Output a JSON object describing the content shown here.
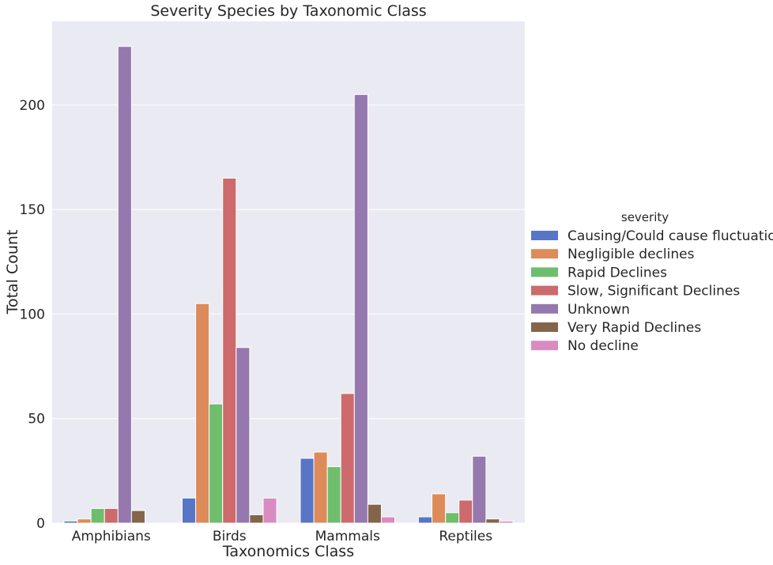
{
  "chart_data": {
    "type": "bar",
    "title": "Severity Species by Taxonomic Class",
    "xlabel": "Taxonomics Class",
    "ylabel": "Total Count",
    "categories": [
      "Amphibians",
      "Birds",
      "Mammals",
      "Reptiles"
    ],
    "ylim": [
      0,
      240
    ],
    "yticks": [
      0,
      50,
      100,
      150,
      200
    ],
    "grid": true,
    "legend_title": "severity",
    "legend_position": "right",
    "series": [
      {
        "name": "Causing/Could cause fluctuations",
        "color": "#5875c6",
        "values": [
          1,
          12,
          31,
          3
        ]
      },
      {
        "name": "Negligible declines",
        "color": "#dd8b5a",
        "values": [
          2,
          105,
          34,
          14
        ]
      },
      {
        "name": "Rapid Declines",
        "color": "#6ebe6e",
        "values": [
          7,
          57,
          27,
          5
        ]
      },
      {
        "name": "Slow, Significant Declines",
        "color": "#cc6a6c",
        "values": [
          7,
          165,
          62,
          11
        ]
      },
      {
        "name": "Unknown",
        "color": "#9578ad",
        "values": [
          228,
          84,
          205,
          32
        ]
      },
      {
        "name": "Very Rapid Declines",
        "color": "#84654b",
        "values": [
          6,
          4,
          9,
          2
        ]
      },
      {
        "name": "No decline",
        "color": "#d88cc2",
        "values": [
          0,
          12,
          3,
          1
        ]
      }
    ]
  }
}
